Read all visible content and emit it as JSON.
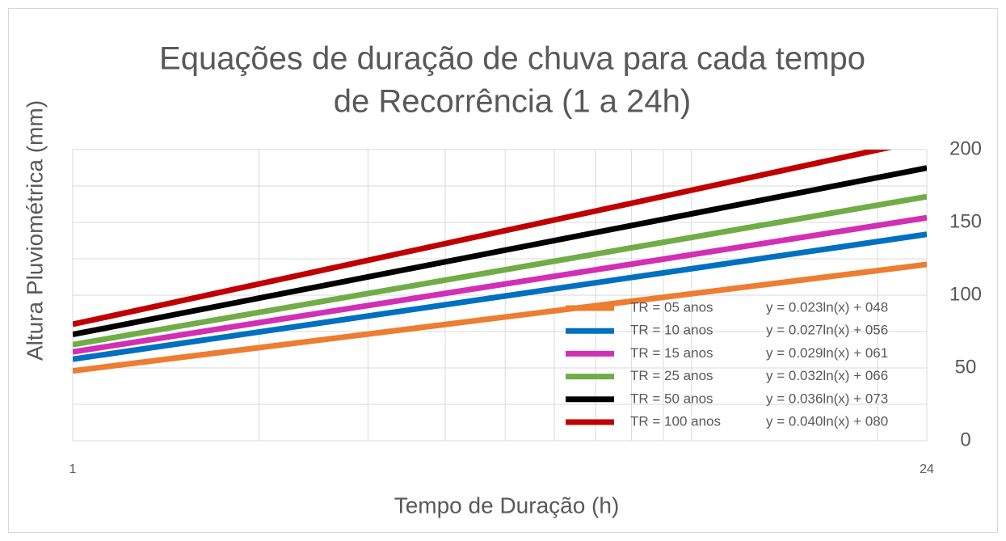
{
  "chart_data": {
    "type": "line",
    "title": [
      "Equações de duração de chuva para cada tempo",
      "de Recorrência (1 a 24h)"
    ],
    "x_label": "Tempo de Duração (h)",
    "y_label": "Altura Pluviométrica (mm)",
    "x": [
      1,
      24
    ],
    "xlim": [
      1,
      24
    ],
    "xticks": [
      1,
      24
    ],
    "x_log": true,
    "x_minor_grid": [
      2,
      3,
      4,
      5,
      6,
      7,
      8,
      9,
      10,
      20
    ],
    "ylim": [
      0,
      200
    ],
    "yticks": [
      0,
      50,
      100,
      150,
      200
    ],
    "y_minor_grid": [
      25,
      75,
      125,
      175
    ],
    "y_axis_side": "right",
    "grid": true,
    "legend": "lower right",
    "series": [
      {
        "name": "TR = 05 anos",
        "equation": "y = 0.023ln(x) + 048",
        "color": "#ed7d31",
        "values": [
          48,
          121.1
        ]
      },
      {
        "name": "TR = 10 anos",
        "equation": "y = 0.027ln(x) + 056",
        "color": "#0070c0",
        "values": [
          56,
          141.8
        ]
      },
      {
        "name": "TR = 15 anos",
        "equation": "y = 0.029ln(x) + 061",
        "color": "#d22fb4",
        "values": [
          61,
          153.2
        ]
      },
      {
        "name": "TR = 25 anos",
        "equation": "y = 0.032ln(x) + 066",
        "color": "#70ad47",
        "values": [
          66,
          167.7
        ]
      },
      {
        "name": "TR = 50 anos",
        "equation": "y = 0.036ln(x) + 073",
        "color": "#000000",
        "values": [
          73,
          187.4
        ]
      },
      {
        "name": "TR = 100 anos",
        "equation": "y = 0.040ln(x) + 080",
        "color": "#c00000",
        "values": [
          80,
          207.1
        ]
      }
    ]
  }
}
